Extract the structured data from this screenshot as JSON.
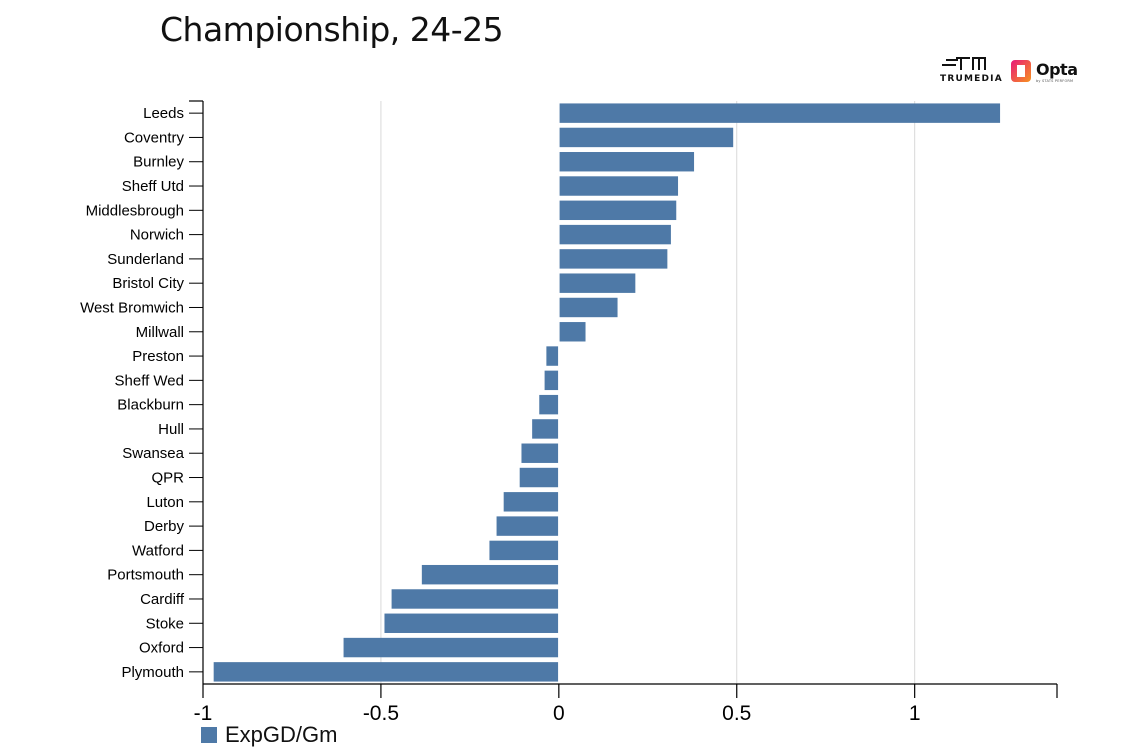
{
  "title": "Championship, 24-25",
  "logos": {
    "trumedia_text": "TRUMEDIA",
    "opta_text": "Opta",
    "opta_sub": "by STATS PERFORM"
  },
  "colors": {
    "bar": "#4e79a7",
    "grid": "#d9d9d9",
    "axis": "#000000"
  },
  "legend": {
    "label": "ExpGD/Gm",
    "placement": "bottom-left"
  },
  "chart_data": {
    "type": "bar",
    "orientation": "horizontal",
    "title": "Championship, 24-25",
    "xlabel": "",
    "ylabel": "",
    "xlim": [
      -1,
      1.4
    ],
    "xticks": [
      -1,
      -0.5,
      0,
      0.5,
      1
    ],
    "xtick_labels": [
      "-1",
      "-0.5",
      "0",
      "0.5",
      "1"
    ],
    "grid": true,
    "categories": [
      "Leeds",
      "Coventry",
      "Burnley",
      "Sheff Utd",
      "Middlesbrough",
      "Norwich",
      "Sunderland",
      "Bristol City",
      "West Bromwich",
      "Millwall",
      "Preston",
      "Sheff Wed",
      "Blackburn",
      "Hull",
      "Swansea",
      "QPR",
      "Luton",
      "Derby",
      "Watford",
      "Portsmouth",
      "Cardiff",
      "Stoke",
      "Oxford",
      "Plymouth"
    ],
    "series": [
      {
        "name": "ExpGD/Gm",
        "values": [
          1.24,
          0.49,
          0.38,
          0.335,
          0.33,
          0.315,
          0.305,
          0.215,
          0.165,
          0.075,
          -0.035,
          -0.04,
          -0.055,
          -0.075,
          -0.105,
          -0.11,
          -0.155,
          -0.175,
          -0.195,
          -0.385,
          -0.47,
          -0.49,
          -0.605,
          -0.97
        ]
      }
    ]
  }
}
